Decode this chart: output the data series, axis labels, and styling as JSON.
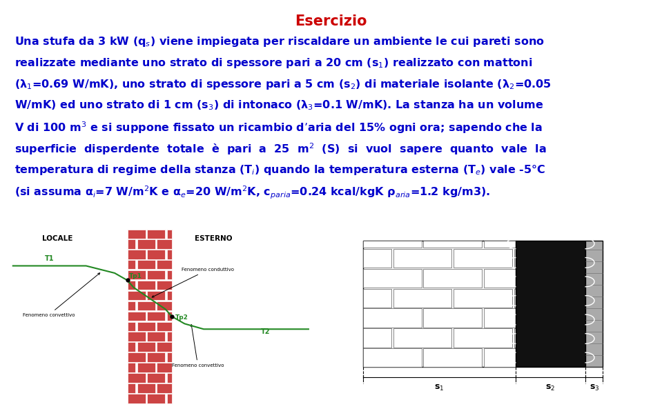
{
  "title": "Esercizio",
  "title_color": "#cc0000",
  "title_fontsize": 15,
  "body_color": "#0000cc",
  "body_fontsize": 11.5,
  "bg_color": "#ffffff",
  "paragraph_lines": [
    "Una stufa da 3 kW (q$_s$) viene impiegata per riscaldare un ambiente le cui pareti sono",
    "realizzate mediante uno strato di spessore pari a 20 cm (s$_1$) realizzato con mattoni",
    "(λ$_1$=0.69 W/mK), uno strato di spessore pari a 5 cm (s$_2$) di materiale isolante (λ$_2$=0.05",
    "W/mK) ed uno strato di 1 cm (s$_3$) di intonaco (λ$_3$=0.1 W/mK). La stanza ha un volume",
    "V di 100 m$^3$ e si suppone fissato un ricambio d’aria del 15% ogni ora; sapendo che la",
    "superficie  disperdente  totale  è  pari  a  25  m$^2$  (S)  si  vuol  sapere  quanto  vale  la",
    "temperatura di regime della stanza (T$_i$) quando la temperatura esterna (T$_e$) vale -5°C",
    "(si assuma α$_i$=7 W/m$^2$K e α$_e$=20 W/m$^2$K, c$_{paria}$=0.24 kcal/kgK ρ$_{aria}$=1.2 kg/m3)."
  ],
  "locale_label": "LOCALE",
  "esterno_label": "ESTERNO",
  "T1_label": "T1",
  "Tp1_label": "Tp1",
  "Tp2_label": "Tp2",
  "T2_label": "T2",
  "fenomeno_conv_sx": "Fenomeno convettivo",
  "fenomeno_cond": "Fenomeno conduttivo",
  "fenomeno_conv_dx": "Fenomeno convettivo",
  "brick_color": "#cc4444",
  "green_color": "#228822",
  "label_s1": "s$_1$",
  "label_s2": "s$_2$",
  "label_s3": "s$_3$"
}
